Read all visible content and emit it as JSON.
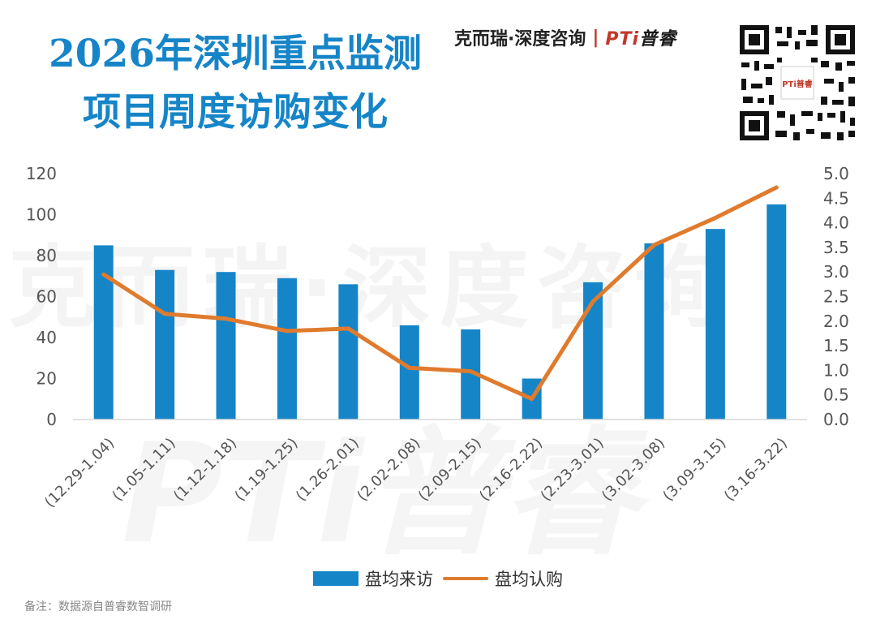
{
  "title_line1": "2026年深圳重点监测",
  "title_line2": "项目周度访购变化",
  "brand": {
    "company": "克而瑞·深度咨询",
    "divider": "|",
    "logo": "PTi",
    "logo_suffix": "普睿"
  },
  "qr_caption": "PTi普睿",
  "watermark_text": "克而瑞·深度咨询",
  "watermark_text2": "PTi普睿",
  "note": "备注：数据源自普睿数智调研",
  "colors": {
    "bar": "#1685c8",
    "line": "#e07b2e",
    "title": "#1685c8"
  },
  "chart_data": {
    "type": "bar+line",
    "categories": [
      "(12.29-1.04)",
      "(1.05-1.11)",
      "(1.12-1.18)",
      "(1.19-1.25)",
      "(1.26-2.01)",
      "(2.02-2.08)",
      "(2.09-2.15)",
      "(2.16-2.22)",
      "(2.23-3.01)",
      "(3.02-3.08)",
      "(3.09-3.15)",
      "(3.16-3.22)"
    ],
    "series": [
      {
        "name": "盘均来访",
        "type": "bar",
        "axis": "left",
        "values": [
          85,
          73,
          72,
          69,
          66,
          46,
          44,
          20,
          67,
          86,
          93,
          105
        ]
      },
      {
        "name": "盘均认购",
        "type": "line",
        "axis": "right",
        "values": [
          2.95,
          2.15,
          2.05,
          1.8,
          1.85,
          1.05,
          0.98,
          0.42,
          2.4,
          3.55,
          4.1,
          4.72
        ]
      }
    ],
    "y_left": {
      "min": 0,
      "max": 120,
      "ticks": [
        "0",
        "20",
        "40",
        "60",
        "80",
        "100",
        "120"
      ]
    },
    "y_right": {
      "min": 0,
      "max": 5,
      "ticks": [
        "0.0",
        "0.5",
        "1.0",
        "1.5",
        "2.0",
        "2.5",
        "3.0",
        "3.5",
        "4.0",
        "4.5",
        "5.0"
      ]
    },
    "grid": false,
    "legend": "bottom"
  }
}
